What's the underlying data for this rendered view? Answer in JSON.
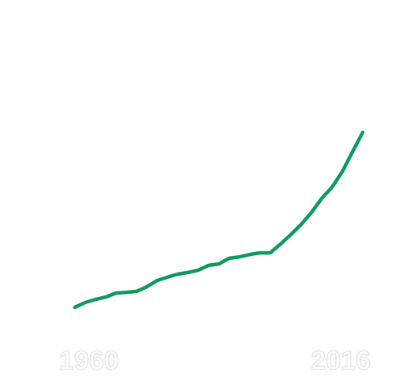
{
  "chart_data": {
    "type": "line",
    "x": [
      1960,
      1962,
      1964,
      1966,
      1968,
      1970,
      1972,
      1974,
      1976,
      1978,
      1980,
      1982,
      1984,
      1986,
      1988,
      1990,
      1992,
      1994,
      1996,
      1998,
      2000,
      2002,
      2004,
      2006,
      2008,
      2010,
      2012,
      2014,
      2016
    ],
    "series": [
      {
        "color": "#0e9a5c",
        "values": [
          10,
          12,
          13.3,
          14.3,
          16,
          16.3,
          16.7,
          18.7,
          21.3,
          22.7,
          24,
          24.7,
          25.7,
          27.7,
          28.3,
          30.7,
          31.3,
          32.3,
          33,
          33,
          36.7,
          40.7,
          45,
          50,
          56,
          60.7,
          67.3,
          75.7,
          84
        ]
      }
    ],
    "xlim": [
      1960,
      2016
    ],
    "xticks": [
      1960,
      2016
    ],
    "ylim": [
      0,
      100
    ]
  }
}
